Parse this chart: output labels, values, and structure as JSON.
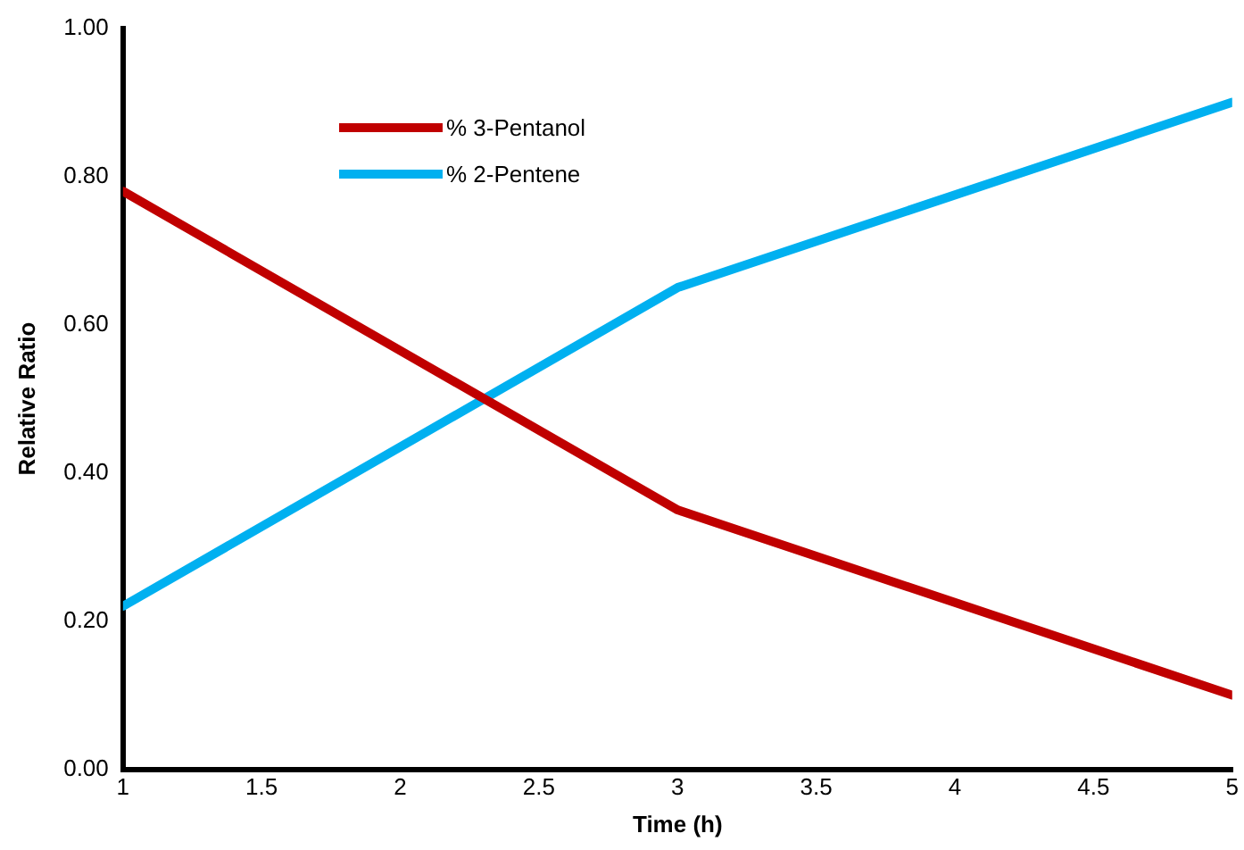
{
  "chart_data": {
    "type": "line",
    "xlabel": "Time (h)",
    "ylabel": "Relative Ratio",
    "x": [
      1,
      3,
      5
    ],
    "series": [
      {
        "name": "% 3-Pentanol",
        "color": "#c00000",
        "values": [
          0.78,
          0.35,
          0.1
        ]
      },
      {
        "name": "% 2-Pentene",
        "color": "#00b0f0",
        "values": [
          0.22,
          0.65,
          0.9
        ]
      }
    ],
    "xlim": [
      1,
      5
    ],
    "xticks": [
      1,
      1.5,
      2,
      2.5,
      3,
      3.5,
      4,
      4.5,
      5
    ],
    "ylim": [
      0,
      1
    ],
    "yticks": [
      {
        "value": 0,
        "label": "0.00"
      },
      {
        "value": 0.2,
        "label": "0.20"
      },
      {
        "value": 0.4,
        "label": "0.40"
      },
      {
        "value": 0.6,
        "label": "0.60"
      },
      {
        "value": 0.8,
        "label": "0.80"
      },
      {
        "value": 1,
        "label": "1.00"
      }
    ],
    "grid": false,
    "legend": "top left",
    "marker": "none",
    "line_style": "solid"
  }
}
